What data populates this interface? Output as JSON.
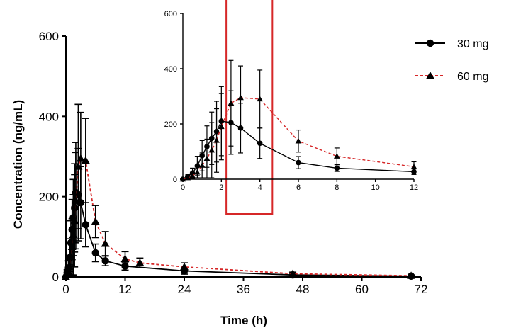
{
  "chart_data": {
    "type": "line",
    "main": {
      "xlabel": "Time (h)",
      "ylabel": "Concentration (ng/mL)",
      "xlim": [
        0,
        72
      ],
      "ylim": [
        0,
        600
      ],
      "xticks": [
        0,
        12,
        24,
        36,
        48,
        60,
        72
      ],
      "yticks": [
        0,
        200,
        400,
        600
      ],
      "xtick_labels": [
        "0",
        "12",
        "24",
        "36",
        "48",
        "60",
        "72"
      ],
      "ytick_labels": [
        "0",
        "200",
        "400",
        "600"
      ]
    },
    "inset": {
      "xlim": [
        0,
        12
      ],
      "ylim": [
        0,
        600
      ],
      "xticks": [
        0,
        2,
        4,
        6,
        8,
        10,
        12
      ],
      "yticks": [
        0,
        200,
        400,
        600
      ],
      "xtick_labels": [
        "0",
        "2",
        "4",
        "6",
        "8",
        "10",
        "12"
      ],
      "ytick_labels": [
        "0",
        "200",
        "400",
        "600"
      ],
      "highlight_x_range": [
        2.25,
        4.65
      ],
      "highlight_color": "#d62728"
    },
    "legend_position": "top-right",
    "series": [
      {
        "name": "30 mg",
        "marker": "circle",
        "line_style": "solid",
        "color": "#000000",
        "x": [
          0,
          0.25,
          0.5,
          0.75,
          1,
          1.25,
          1.5,
          1.75,
          2,
          2.5,
          3,
          4,
          6,
          8,
          12,
          24,
          46,
          70
        ],
        "y": [
          0,
          10,
          22,
          48,
          85,
          118,
          148,
          172,
          210,
          205,
          185,
          130,
          60,
          40,
          27,
          15,
          5,
          2
        ],
        "err": [
          0,
          8,
          18,
          35,
          55,
          75,
          95,
          110,
          125,
          115,
          90,
          55,
          22,
          12,
          10,
          8,
          4,
          2
        ]
      },
      {
        "name": "60 mg",
        "marker": "triangle",
        "line_style": "dashed",
        "color": "#d62728",
        "x": [
          0,
          0.25,
          0.5,
          0.75,
          1,
          1.25,
          1.5,
          1.75,
          2,
          2.5,
          3,
          4,
          6,
          8,
          12,
          15,
          24,
          46,
          70
        ],
        "y": [
          0,
          5,
          12,
          25,
          50,
          75,
          105,
          140,
          190,
          275,
          295,
          290,
          138,
          83,
          45,
          35,
          25,
          8,
          3
        ],
        "err": [
          0,
          5,
          10,
          20,
          45,
          70,
          100,
          115,
          120,
          155,
          115,
          105,
          40,
          30,
          18,
          12,
          10,
          4,
          2
        ]
      }
    ]
  }
}
